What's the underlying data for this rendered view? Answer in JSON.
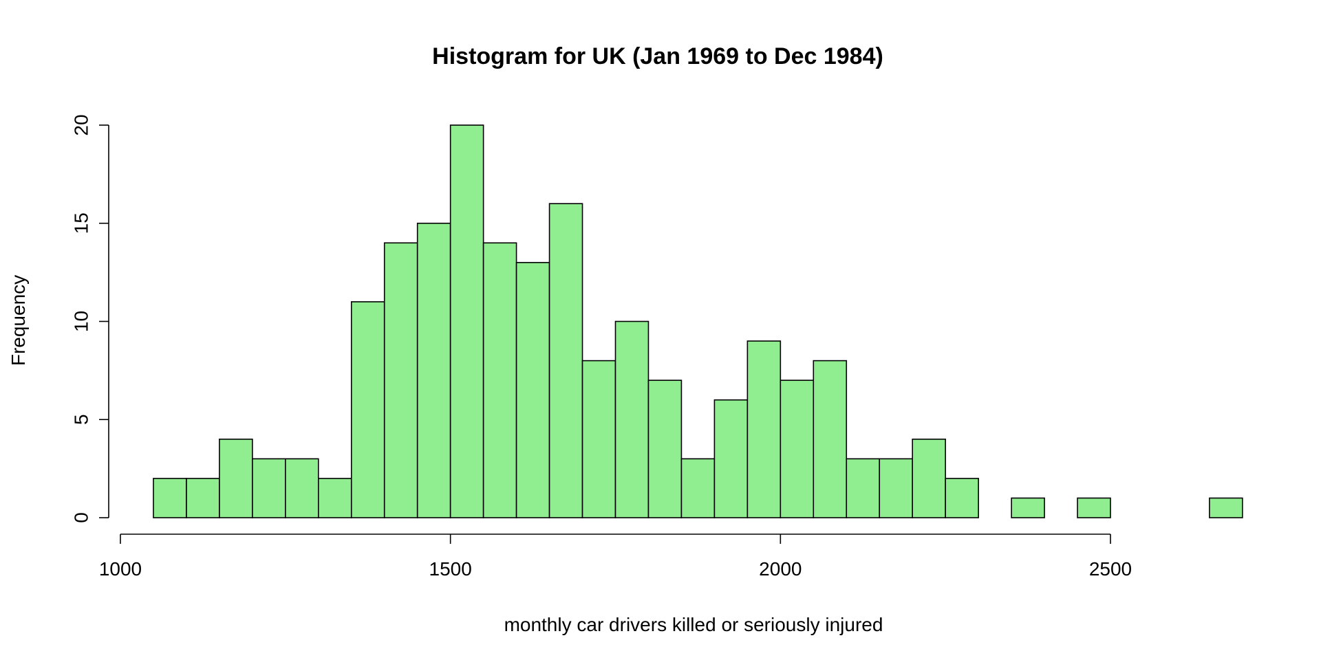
{
  "chart_data": {
    "type": "bar",
    "title": "Histogram for UK (Jan 1969 to Dec 1984)",
    "xlabel": "monthly car drivers killed or seriously injured",
    "ylabel": "Frequency",
    "bin_width": 50,
    "bin_starts": [
      1050,
      1100,
      1150,
      1200,
      1250,
      1300,
      1350,
      1400,
      1450,
      1500,
      1550,
      1600,
      1650,
      1700,
      1750,
      1800,
      1850,
      1900,
      1950,
      2000,
      2050,
      2100,
      2150,
      2200,
      2250,
      2300,
      2350,
      2400,
      2450,
      2500,
      2550,
      2600,
      2650
    ],
    "values": [
      2,
      2,
      4,
      3,
      3,
      2,
      11,
      14,
      15,
      20,
      14,
      13,
      16,
      8,
      10,
      7,
      3,
      6,
      9,
      7,
      8,
      3,
      3,
      4,
      2,
      0,
      1,
      0,
      1,
      0,
      0,
      0,
      1
    ],
    "xlim": [
      1000,
      2500
    ],
    "ylim": [
      0,
      20
    ],
    "x_ticks": [
      "1000",
      "1500",
      "2000",
      "2500"
    ],
    "y_ticks": [
      "0",
      "5",
      "10",
      "15",
      "20"
    ],
    "bar_color": "#90ee90",
    "bar_border_color": "#000000",
    "grid": false,
    "legend": "none"
  }
}
